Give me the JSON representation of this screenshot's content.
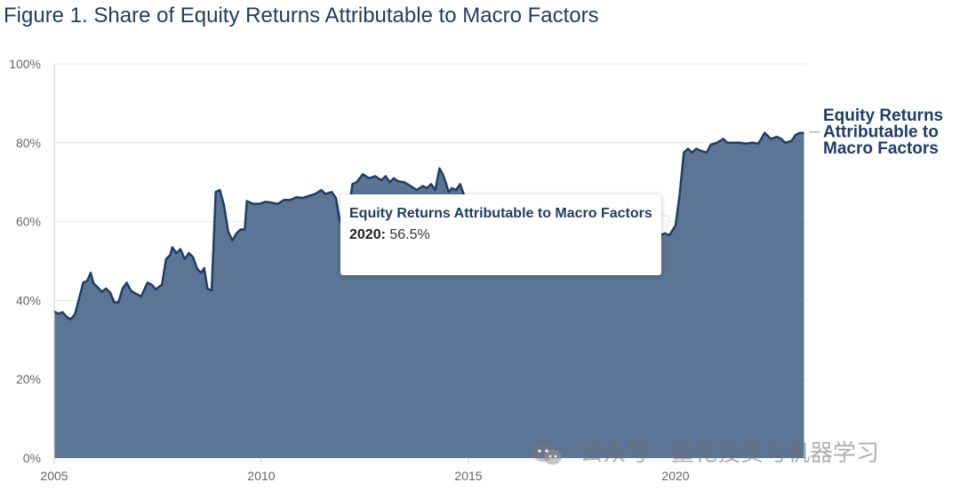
{
  "title": "Figure 1. Share of Equity Returns Attributable to Macro Factors",
  "tooltip": {
    "series": "Equity Returns Attributable to Macro Factors",
    "year_label": "2020:",
    "value_label": "56.5%"
  },
  "watermark": {
    "text": "公众号 · 量化投资与机器学习",
    "icon": "wechat-icon"
  },
  "colors": {
    "area": "#5c7594",
    "line": "#1f3d66",
    "title": "#1f3d66",
    "grid": "#e6e6e6",
    "axis_text": "#666666"
  },
  "chart_data": {
    "type": "area",
    "title": "Figure 1. Share of Equity Returns Attributable to Macro Factors",
    "xlabel": "",
    "ylabel": "",
    "xlim": [
      2005,
      2023.1
    ],
    "ylim": [
      0,
      100
    ],
    "x_ticks": [
      2005,
      2010,
      2015,
      2020
    ],
    "x_tick_labels": [
      "2005",
      "2010",
      "2015",
      "2020"
    ],
    "y_ticks": [
      0,
      20,
      40,
      60,
      80,
      100
    ],
    "y_tick_labels": [
      "0%",
      "20%",
      "40%",
      "60%",
      "80%",
      "100%"
    ],
    "grid": "horizontal",
    "series": [
      {
        "name": "Equity Returns Attributable to Macro Factors",
        "label_lines": [
          "Equity Returns",
          "Attributable to",
          "Macro Factors"
        ],
        "points": [
          [
            2005.0,
            37.2
          ],
          [
            2005.1,
            36.6
          ],
          [
            2005.2,
            37.0
          ],
          [
            2005.3,
            35.8
          ],
          [
            2005.4,
            35.2
          ],
          [
            2005.5,
            36.5
          ],
          [
            2005.6,
            40.5
          ],
          [
            2005.7,
            44.5
          ],
          [
            2005.8,
            45.0
          ],
          [
            2005.88,
            47.0
          ],
          [
            2005.95,
            44.3
          ],
          [
            2006.05,
            43.3
          ],
          [
            2006.15,
            42.2
          ],
          [
            2006.25,
            43.0
          ],
          [
            2006.35,
            42.0
          ],
          [
            2006.45,
            39.5
          ],
          [
            2006.55,
            39.5
          ],
          [
            2006.65,
            43.0
          ],
          [
            2006.75,
            44.5
          ],
          [
            2006.85,
            42.5
          ],
          [
            2006.95,
            41.8
          ],
          [
            2007.1,
            41.0
          ],
          [
            2007.25,
            44.5
          ],
          [
            2007.35,
            44.0
          ],
          [
            2007.45,
            42.8
          ],
          [
            2007.6,
            44.0
          ],
          [
            2007.7,
            50.5
          ],
          [
            2007.8,
            51.5
          ],
          [
            2007.85,
            53.5
          ],
          [
            2007.95,
            52.0
          ],
          [
            2008.05,
            53.0
          ],
          [
            2008.15,
            50.5
          ],
          [
            2008.25,
            52.0
          ],
          [
            2008.35,
            51.0
          ],
          [
            2008.45,
            48.0
          ],
          [
            2008.55,
            47.0
          ],
          [
            2008.62,
            48.2
          ],
          [
            2008.7,
            43.0
          ],
          [
            2008.8,
            42.5
          ],
          [
            2008.9,
            67.5
          ],
          [
            2009.0,
            68.0
          ],
          [
            2009.1,
            64.0
          ],
          [
            2009.2,
            57.5
          ],
          [
            2009.3,
            55.2
          ],
          [
            2009.4,
            57.0
          ],
          [
            2009.5,
            58.0
          ],
          [
            2009.6,
            58.0
          ],
          [
            2009.65,
            65.2
          ],
          [
            2009.8,
            64.5
          ],
          [
            2009.95,
            64.5
          ],
          [
            2010.1,
            65.0
          ],
          [
            2010.25,
            64.8
          ],
          [
            2010.4,
            64.5
          ],
          [
            2010.55,
            65.5
          ],
          [
            2010.7,
            65.5
          ],
          [
            2010.85,
            66.2
          ],
          [
            2011.0,
            66.0
          ],
          [
            2011.15,
            66.5
          ],
          [
            2011.3,
            67.0
          ],
          [
            2011.45,
            68.0
          ],
          [
            2011.55,
            67.0
          ],
          [
            2011.7,
            67.5
          ],
          [
            2011.8,
            66.0
          ],
          [
            2011.9,
            60.0
          ],
          [
            2012.0,
            58.5
          ],
          [
            2012.1,
            62.0
          ],
          [
            2012.2,
            69.5
          ],
          [
            2012.3,
            70.0
          ],
          [
            2012.45,
            72.0
          ],
          [
            2012.6,
            71.0
          ],
          [
            2012.75,
            71.5
          ],
          [
            2012.9,
            70.5
          ],
          [
            2013.0,
            71.5
          ],
          [
            2013.1,
            70.0
          ],
          [
            2013.2,
            71.0
          ],
          [
            2013.3,
            70.2
          ],
          [
            2013.45,
            70.0
          ],
          [
            2013.6,
            69.0
          ],
          [
            2013.75,
            68.0
          ],
          [
            2013.9,
            69.0
          ],
          [
            2014.0,
            68.5
          ],
          [
            2014.1,
            69.5
          ],
          [
            2014.2,
            68.0
          ],
          [
            2014.3,
            73.5
          ],
          [
            2014.38,
            72.0
          ],
          [
            2014.45,
            70.0
          ],
          [
            2014.52,
            67.5
          ],
          [
            2014.6,
            68.5
          ],
          [
            2014.7,
            68.0
          ],
          [
            2014.8,
            69.5
          ],
          [
            2014.9,
            66.5
          ],
          [
            2015.0,
            65.5
          ],
          [
            2015.15,
            64.0
          ],
          [
            2015.3,
            62.0
          ],
          [
            2015.5,
            61.0
          ],
          [
            2015.7,
            60.0
          ],
          [
            2015.9,
            59.5
          ],
          [
            2016.2,
            59.0
          ],
          [
            2016.6,
            58.5
          ],
          [
            2017.0,
            58.0
          ],
          [
            2017.5,
            57.5
          ],
          [
            2018.0,
            57.0
          ],
          [
            2018.5,
            56.5
          ],
          [
            2019.0,
            56.5
          ],
          [
            2019.3,
            56.0
          ],
          [
            2019.55,
            56.3
          ],
          [
            2019.75,
            57.0
          ],
          [
            2019.85,
            56.5
          ],
          [
            2020.0,
            59.0
          ],
          [
            2020.1,
            67.0
          ],
          [
            2020.2,
            77.5
          ],
          [
            2020.3,
            78.5
          ],
          [
            2020.4,
            77.5
          ],
          [
            2020.5,
            78.5
          ],
          [
            2020.6,
            78.0
          ],
          [
            2020.75,
            77.5
          ],
          [
            2020.85,
            79.5
          ],
          [
            2021.0,
            80.0
          ],
          [
            2021.15,
            81.0
          ],
          [
            2021.25,
            80.0
          ],
          [
            2021.4,
            80.0
          ],
          [
            2021.55,
            80.0
          ],
          [
            2021.7,
            79.8
          ],
          [
            2021.85,
            80.0
          ],
          [
            2022.0,
            79.8
          ],
          [
            2022.15,
            82.5
          ],
          [
            2022.3,
            81.0
          ],
          [
            2022.45,
            81.5
          ],
          [
            2022.55,
            81.0
          ],
          [
            2022.65,
            80.0
          ],
          [
            2022.8,
            80.5
          ],
          [
            2022.9,
            82.0
          ],
          [
            2023.0,
            82.5
          ],
          [
            2023.1,
            82.5
          ]
        ]
      }
    ]
  }
}
